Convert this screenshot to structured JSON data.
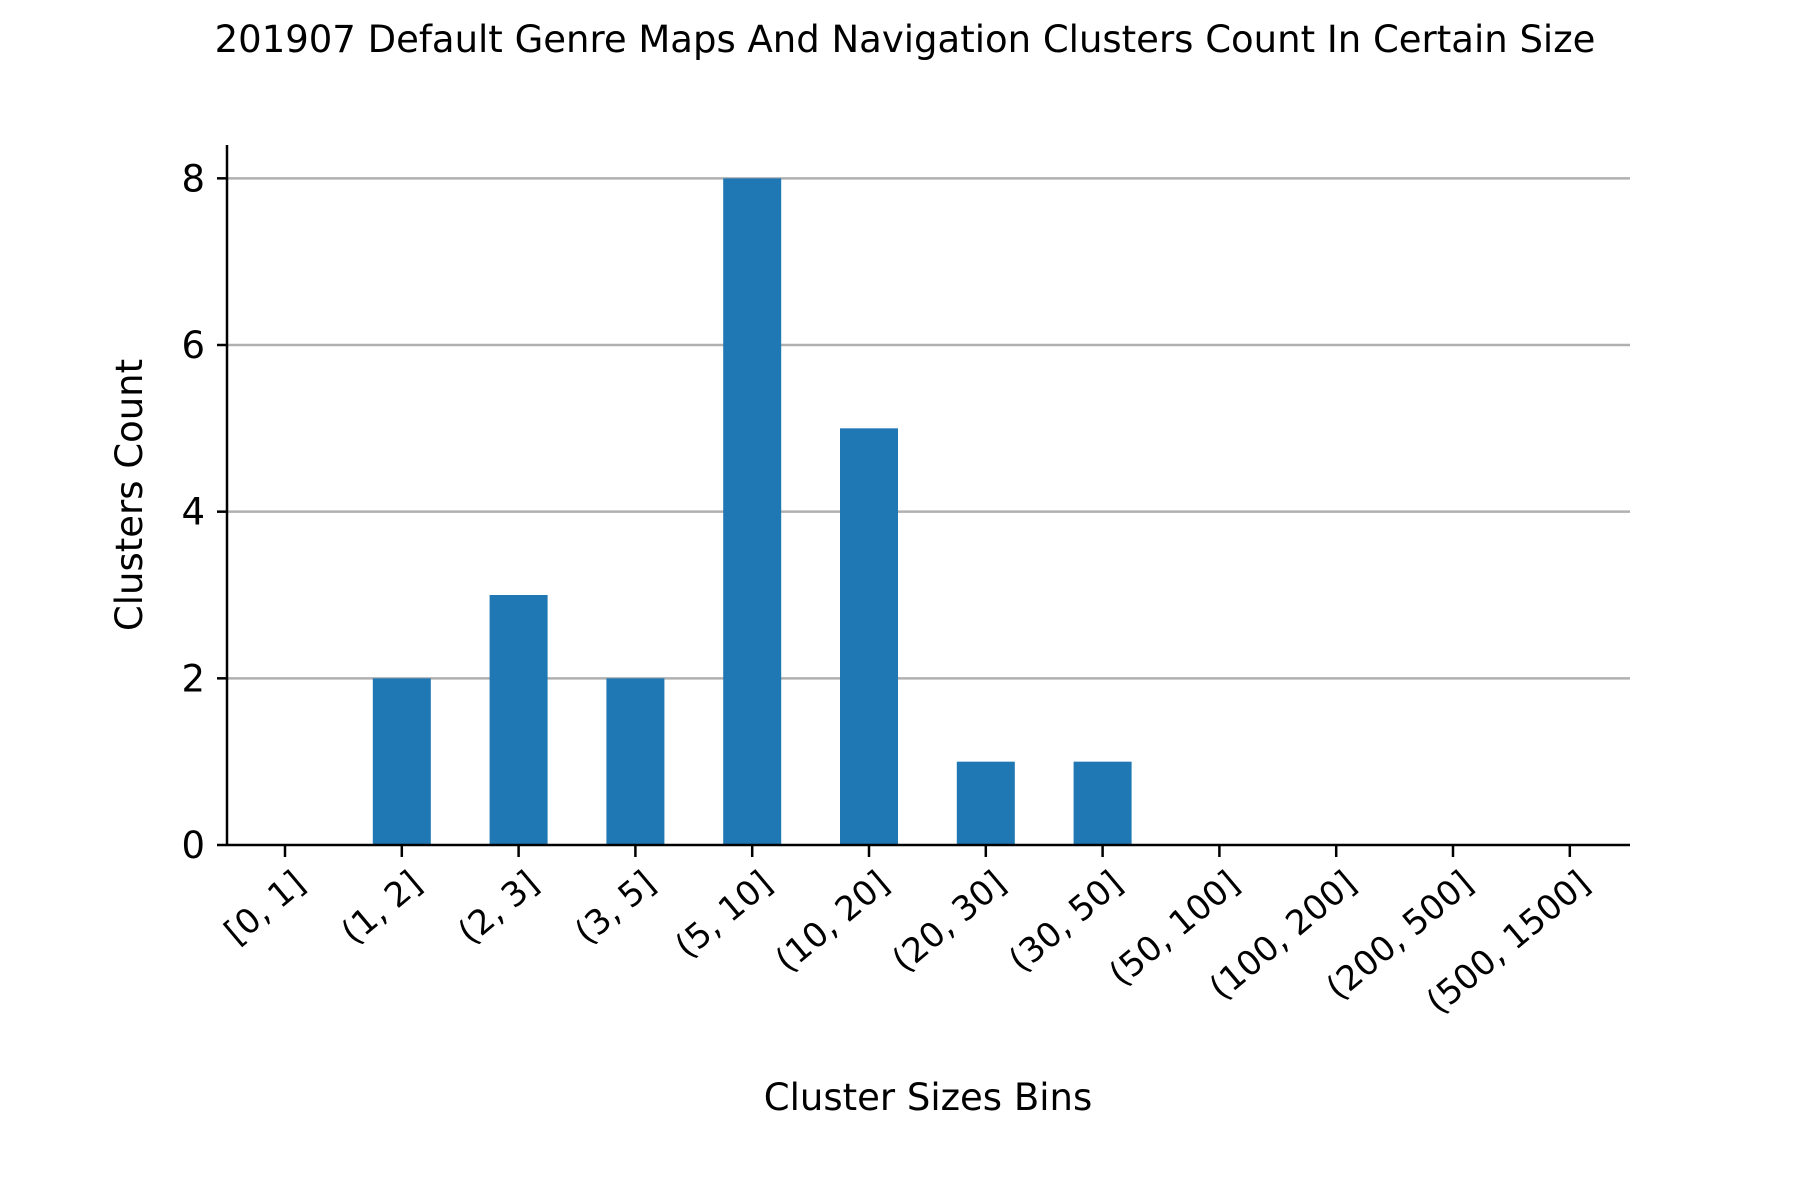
{
  "chart_data": {
    "type": "bar",
    "title": "201907 Default Genre Maps And Navigation Clusters Count In Certain Size",
    "xlabel": "Cluster Sizes Bins",
    "ylabel": "Clusters Count",
    "categories": [
      "[0, 1]",
      "(1, 2]",
      "(2, 3]",
      "(3, 5]",
      "(5, 10]",
      "(10, 20]",
      "(20, 30]",
      "(30, 50]",
      "(50, 100]",
      "(100, 200]",
      "(200, 500]",
      "(500, 1500]"
    ],
    "values": [
      0,
      2,
      3,
      2,
      8,
      5,
      1,
      1,
      0,
      0,
      0,
      0
    ],
    "ylim": [
      0,
      8.4
    ],
    "yticks": [
      0,
      2,
      4,
      6,
      8
    ],
    "grid": "y",
    "bar_color": "#1f77b4",
    "xtick_rotation": -40
  }
}
